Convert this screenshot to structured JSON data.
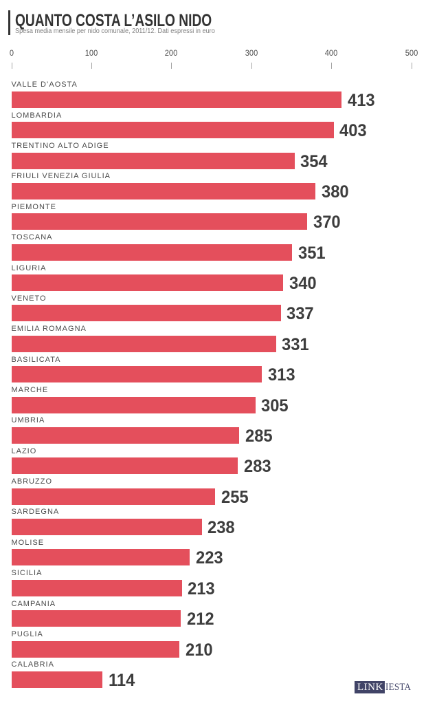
{
  "header": {
    "title": "QUANTO COSTA L’ASILO NIDO",
    "subtitle": "Spesa media mensile per nido comunale, 2011/12. Dati espressi in euro"
  },
  "axis": {
    "tick_values": [
      0,
      100,
      200,
      300,
      400,
      500
    ],
    "tick_labels": [
      "0",
      "100",
      "200",
      "300",
      "400",
      "500"
    ]
  },
  "chart_data": {
    "type": "bar",
    "orientation": "horizontal",
    "title": "QUANTO COSTA L’ASILO NIDO",
    "subtitle": "Spesa media mensile per nido comunale, 2011/12. Dati espressi in euro",
    "categories": [
      "VALLE D’AOSTA",
      "LOMBARDIA",
      "TRENTINO ALTO ADIGE",
      "FRIULI VENEZIA GIULIA",
      "PIEMONTE",
      "TOSCANA",
      "LIGURIA",
      "VENETO",
      "EMILIA ROMAGNA",
      "BASILICATA",
      "MARCHE",
      "UMBRIA",
      "LAZIO",
      "ABRUZZO",
      "SARDEGNA",
      "MOLISE",
      "SICILIA",
      "CAMPANIA",
      "PUGLIA",
      "CALABRIA"
    ],
    "values": [
      413,
      403,
      354,
      380,
      370,
      351,
      340,
      337,
      331,
      313,
      305,
      285,
      283,
      255,
      238,
      223,
      213,
      212,
      210,
      114
    ],
    "xlim": [
      0,
      500
    ],
    "unit": "euro",
    "bar_color": "#e44f5c",
    "grid": false,
    "legend": "none"
  },
  "footer": {
    "logo_boxed_text": "LINK",
    "logo_plain_text": "IESTA",
    "logo_box_color": "#414467"
  },
  "colors": {
    "background": "#ffffff",
    "bar": "#e44f5c",
    "title": "#333333",
    "subtitle": "#7f7f7f",
    "category_label": "#4b4b4b",
    "value_label": "#3d3d3d",
    "axis_label": "#4f4f4f",
    "logo_navy": "#414467"
  }
}
